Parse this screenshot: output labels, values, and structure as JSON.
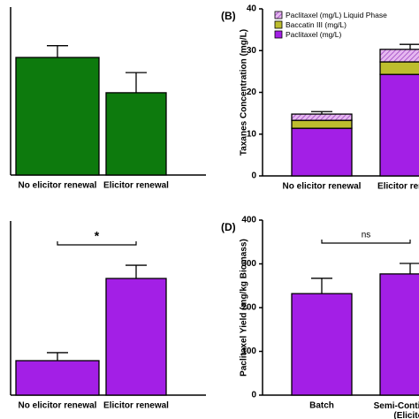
{
  "chart_data": [
    {
      "type": "bar",
      "categories": [
        "No elicitor renewal",
        "Elicitor renewal"
      ],
      "values": [
        70,
        49
      ],
      "errors": [
        7,
        12
      ],
      "color": "#0d7a0d",
      "ylim": [
        0,
        100
      ]
    },
    {
      "type": "stacked_bar",
      "panel_label": "(B)",
      "y_label": "Taxanes Concentration (mg/L)",
      "categories": [
        "No elicitor renewal",
        "Elicitor renewal"
      ],
      "series": [
        {
          "name": "Paclitaxel (mg/L)",
          "color": "#a31fe6",
          "values": [
            11.4,
            24.3
          ]
        },
        {
          "name": "Baccatin III (mg/L)",
          "color": "#bdbd2e",
          "values": [
            1.9,
            3.0
          ]
        },
        {
          "name": "Paclitaxel (mg/L) Liquid Phase",
          "color": "#d9a3e8",
          "hatch": true,
          "values": [
            1.5,
            3.0
          ]
        }
      ],
      "errors": [
        0.6,
        1.2
      ],
      "ylim": [
        0,
        40
      ],
      "yticks": [
        0,
        10,
        20,
        30,
        40
      ],
      "legend": "upper left"
    },
    {
      "type": "bar",
      "categories": [
        "No elicitor renewal",
        "Elicitor renewal"
      ],
      "values": [
        19.8,
        67
      ],
      "errors": [
        4.6,
        7.6
      ],
      "color": "#a31fe6",
      "ylim": [
        0,
        100
      ],
      "annotation": {
        "text": "*",
        "from": 0,
        "to": 1
      }
    },
    {
      "type": "bar",
      "panel_label": "(D)",
      "y_label": "Paclitaxel Yield (mg/kg Biomass)",
      "categories": [
        "Batch",
        "Semi-Continuous (Elicitor renewal)"
      ],
      "values": [
        232,
        277
      ],
      "errors": [
        35,
        24
      ],
      "color": "#a31fe6",
      "ylim": [
        0,
        400
      ],
      "yticks": [
        0,
        100,
        200,
        300,
        400
      ],
      "annotation": {
        "text": "ns",
        "from": 0,
        "to": 1
      }
    }
  ]
}
